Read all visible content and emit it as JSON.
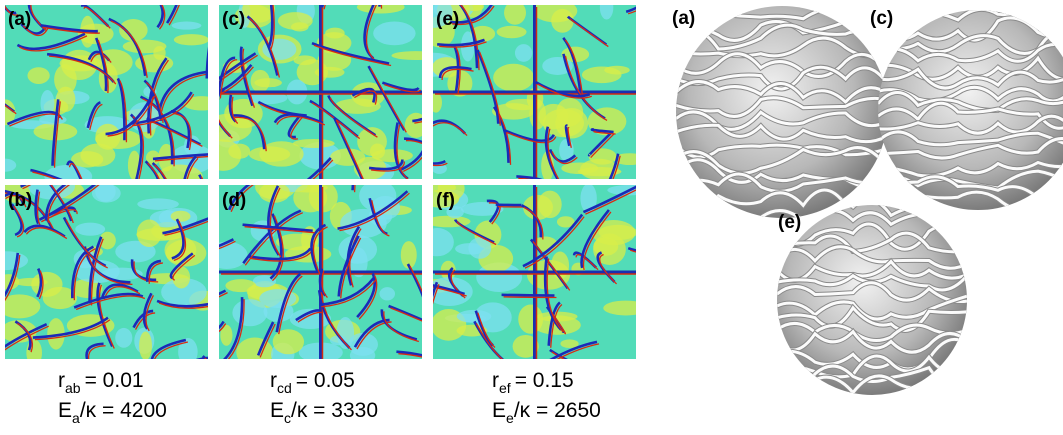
{
  "left_panels": [
    {
      "label": "(a)"
    },
    {
      "label": "(c)"
    },
    {
      "label": "(e)"
    },
    {
      "label": "(b)"
    },
    {
      "label": "(d)"
    },
    {
      "label": "(f)"
    }
  ],
  "captions": [
    {
      "r": "r",
      "r_sub": "ab",
      "r_value": "= 0.01",
      "e": "E",
      "e_sub": "a",
      "e_value": "/κ = 4200"
    },
    {
      "r": "r",
      "r_sub": "cd",
      "r_value": "= 0.05",
      "e": "E",
      "e_sub": "c",
      "e_value": "/κ = 3330"
    },
    {
      "r": "r",
      "r_sub": "ef",
      "r_value": "= 0.15",
      "e": "E",
      "e_sub": "e",
      "e_value": "/κ = 2650"
    }
  ],
  "right_panels": [
    {
      "label": "(a)"
    },
    {
      "label": "(c)"
    },
    {
      "label": "(e)"
    }
  ]
}
